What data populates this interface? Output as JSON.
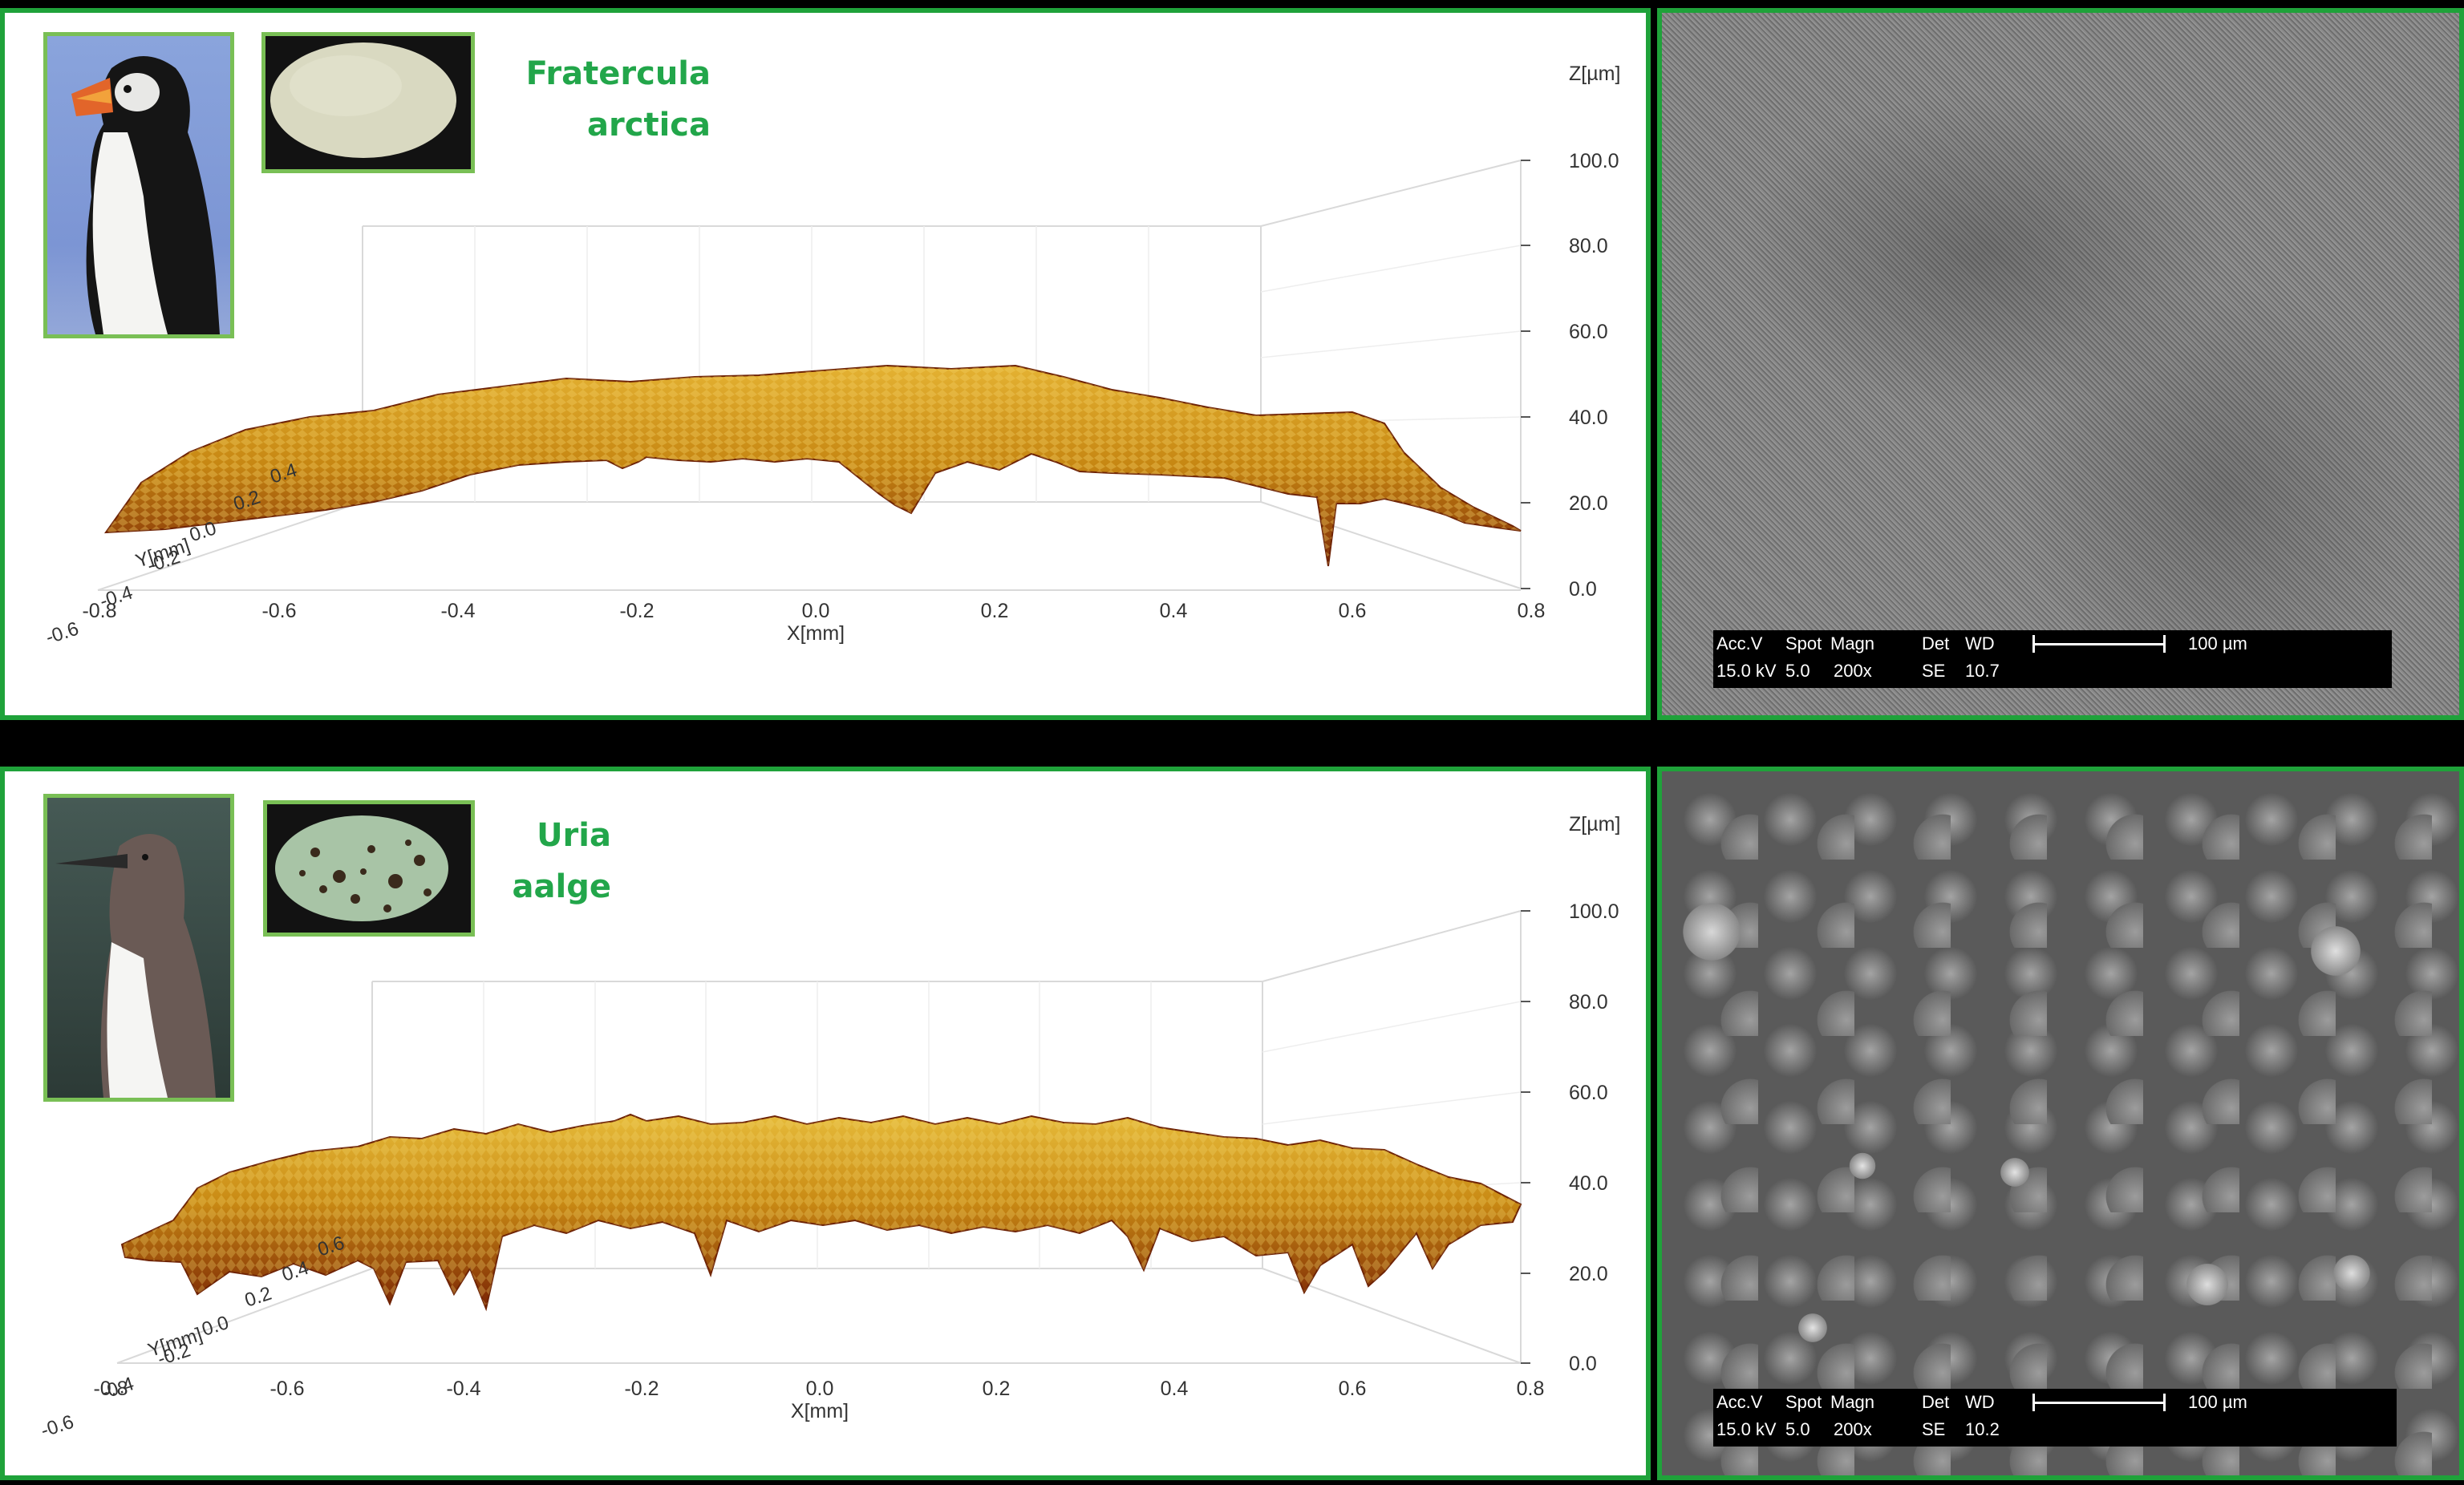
{
  "colors": {
    "frame": "#1fa23a",
    "species_text": "#22a64a"
  },
  "panels": [
    {
      "species_line1": "Fratercula",
      "species_line2": "arctica",
      "bird_image": "atlantic-puffin-photo",
      "egg_image": "pale-cream-egg-photo",
      "z_label": "Z[µm]",
      "z_ticks": [
        "100.0",
        "80.0",
        "60.0",
        "40.0",
        "20.0",
        "0.0"
      ],
      "x_ticks": [
        "-0.8",
        "-0.6",
        "-0.4",
        "-0.2",
        "0.0",
        "0.2",
        "0.4",
        "0.6",
        "0.8"
      ],
      "x_label": "X[mm]",
      "y_label": "Y[mm]",
      "y_ticks": [
        "-0.6",
        "-0.4",
        "-0.2",
        "0.0",
        "0.2",
        "0.4"
      ],
      "sem": {
        "acc_label": "Acc.V",
        "spot_label": "Spot",
        "magn_label": "Magn",
        "det_label": "Det",
        "wd_label": "WD",
        "acc": "15.0 kV",
        "spot": "5.0",
        "magn": "200x",
        "det": "SE",
        "wd": "10.7",
        "scale": "100 µm"
      }
    },
    {
      "species_line1": "Uria",
      "species_line2": "aalge",
      "bird_image": "common-murre-photo",
      "egg_image": "speckled-green-egg-photo",
      "z_label": "Z[µm]",
      "z_ticks": [
        "100.0",
        "80.0",
        "60.0",
        "40.0",
        "20.0",
        "0.0"
      ],
      "x_ticks": [
        "-0.8",
        "-0.6",
        "-0.4",
        "-0.2",
        "0.0",
        "0.2",
        "0.4",
        "0.6",
        "0.8"
      ],
      "x_label": "X[mm]",
      "y_label": "Y[mm]",
      "y_ticks": [
        "-0.6",
        "-0.4",
        "-0.2",
        "0.0",
        "0.2",
        "0.4",
        "0.6"
      ],
      "sem": {
        "acc_label": "Acc.V",
        "spot_label": "Spot",
        "magn_label": "Magn",
        "det_label": "Det",
        "wd_label": "WD",
        "acc": "15.0 kV",
        "spot": "5.0",
        "magn": "200x",
        "det": "SE",
        "wd": "10.2",
        "scale": "100 µm"
      }
    }
  ]
}
